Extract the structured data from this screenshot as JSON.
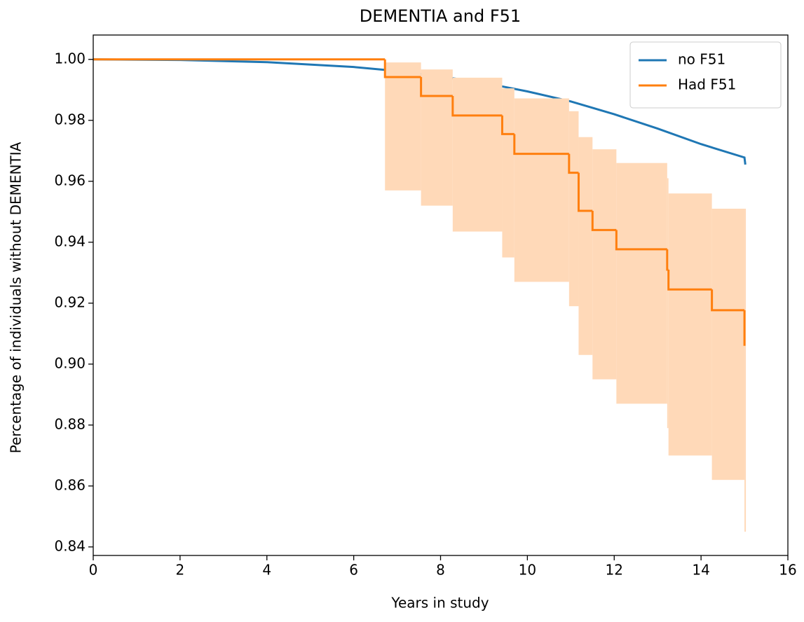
{
  "chart_data": {
    "type": "survival",
    "title": "DEMENTIA and F51",
    "x_label": "Years in study",
    "y_label": "Percentage of individuals without DEMENTIA",
    "xlim": [
      0,
      16
    ],
    "xticks": [
      0,
      2,
      4,
      6,
      8,
      10,
      12,
      14,
      16
    ],
    "ylim": [
      0.8372,
      1.008
    ],
    "yticks": [
      0.84,
      0.86,
      0.88,
      {
        "value": 0.9,
        "label": "0.90"
      },
      0.92,
      0.94,
      0.96,
      0.98,
      {
        "value": 1,
        "label": "1.00"
      }
    ],
    "legend": "upper right",
    "series": [
      {
        "name": "no F51",
        "color": "#1f77b4",
        "style": "line",
        "x": [
          0,
          2,
          4,
          6,
          7,
          8,
          9,
          10,
          11,
          12,
          13,
          14,
          15,
          15.02
        ],
        "values": [
          1.0,
          0.9998,
          0.9991,
          0.9975,
          0.9962,
          0.9944,
          0.9923,
          0.9895,
          0.9862,
          0.982,
          0.9773,
          0.9722,
          0.9678,
          0.9655
        ]
      },
      {
        "name": "Had F51",
        "color": "#ff7f0e",
        "style": "step",
        "band_color": "#ffd9b8",
        "x": [
          0,
          6.72,
          7.55,
          8.28,
          9.42,
          9.7,
          10.96,
          11.18,
          11.5,
          12.05,
          13.22,
          13.25,
          14.25,
          15.0
        ],
        "values": [
          1.0,
          0.9942,
          0.988,
          0.9816,
          0.9755,
          0.969,
          0.9628,
          0.9503,
          0.944,
          0.9377,
          0.931,
          0.9245,
          0.9177,
          0.906
        ],
        "ci_lower": [
          1.0,
          0.957,
          0.952,
          0.9435,
          0.935,
          0.927,
          0.919,
          0.903,
          0.895,
          0.887,
          0.879,
          0.87,
          0.862,
          0.845
        ],
        "ci_upper": [
          1.0,
          0.999,
          0.9967,
          0.994,
          0.9905,
          0.9872,
          0.983,
          0.9745,
          0.9705,
          0.966,
          0.961,
          0.956,
          0.951,
          0.951
        ]
      }
    ]
  }
}
